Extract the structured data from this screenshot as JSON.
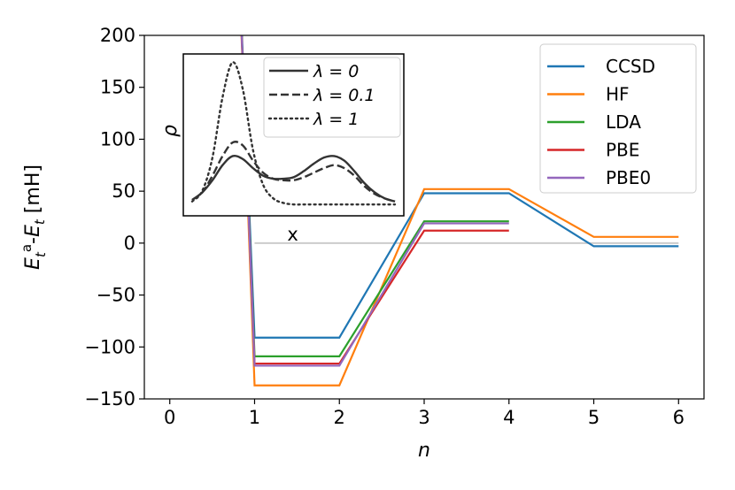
{
  "chart_data": [
    {
      "type": "line",
      "xlabel": "n",
      "ylabel": "E_t^a-E_t [mH]",
      "xlim": [
        -0.3,
        6.3
      ],
      "ylim": [
        -150,
        200
      ],
      "xticks": [
        0,
        1,
        2,
        3,
        4,
        5,
        6
      ],
      "yticks": [
        -150,
        -100,
        -50,
        0,
        50,
        100,
        150,
        200
      ],
      "legend": "top-right",
      "grid": false,
      "reference_line": {
        "y": 0,
        "x_range": [
          1,
          6
        ],
        "color": "#cccccc"
      },
      "annotation": {
        "text": "x",
        "x": 1.45,
        "y": 5
      },
      "series": [
        {
          "name": "CCSD",
          "color": "#1f77b4",
          "x": [
            0.8,
            1,
            2,
            3,
            4,
            5,
            6
          ],
          "values": [
            300,
            -91,
            -91,
            48,
            48,
            -3,
            -3
          ]
        },
        {
          "name": "HF",
          "color": "#ff7f0e",
          "x": [
            0.8,
            1,
            2,
            3,
            4,
            5,
            6
          ],
          "values": [
            300,
            -137,
            -137,
            52,
            52,
            6,
            6
          ]
        },
        {
          "name": "LDA",
          "color": "#2ca02c",
          "x": [
            0.8,
            1,
            2,
            3,
            4
          ],
          "values": [
            300,
            -109,
            -109,
            21,
            21
          ]
        },
        {
          "name": "PBE",
          "color": "#d62728",
          "x": [
            0.8,
            1,
            2,
            3,
            4
          ],
          "values": [
            300,
            -116,
            -116,
            12,
            12
          ]
        },
        {
          "name": "PBE0",
          "color": "#9467bd",
          "x": [
            0.8,
            1,
            2,
            3,
            4
          ],
          "values": [
            300,
            -118,
            -118,
            19,
            19
          ]
        }
      ]
    },
    {
      "type": "line",
      "subplot": "inset",
      "ylabel": "ρ",
      "xlim": [
        0,
        10
      ],
      "ylim": [
        0,
        1
      ],
      "legend": "top-right",
      "series": [
        {
          "name": "λ = 0",
          "style": "solid",
          "color": "#333333",
          "x": [
            0,
            0.5,
            1,
            1.5,
            2,
            2.5,
            3,
            3.5,
            4,
            4.5,
            5,
            5.5,
            6,
            6.5,
            7,
            7.5,
            8,
            8.5,
            9,
            9.5,
            10
          ],
          "values": [
            0.07,
            0.12,
            0.2,
            0.3,
            0.36,
            0.34,
            0.28,
            0.23,
            0.21,
            0.21,
            0.22,
            0.26,
            0.31,
            0.35,
            0.36,
            0.33,
            0.26,
            0.18,
            0.12,
            0.08,
            0.06
          ]
        },
        {
          "name": "λ = 0.1",
          "style": "dashed",
          "color": "#333333",
          "x": [
            0,
            0.5,
            1,
            1.5,
            2,
            2.5,
            3,
            3.5,
            4,
            4.5,
            5,
            5.5,
            6,
            6.5,
            7,
            7.5,
            8,
            8.5,
            9,
            9.5,
            10
          ],
          "values": [
            0.07,
            0.12,
            0.23,
            0.36,
            0.45,
            0.43,
            0.33,
            0.25,
            0.21,
            0.2,
            0.2,
            0.22,
            0.25,
            0.28,
            0.3,
            0.28,
            0.23,
            0.16,
            0.11,
            0.08,
            0.06
          ]
        },
        {
          "name": "λ = 1",
          "style": "dotted",
          "color": "#333333",
          "x": [
            0,
            0.5,
            1,
            1.5,
            2,
            2.5,
            3,
            3.5,
            4,
            4.5,
            5,
            5.5,
            6,
            6.5,
            7,
            7.5,
            8,
            8.5,
            9,
            9.5,
            10
          ],
          "values": [
            0.06,
            0.13,
            0.35,
            0.75,
            0.98,
            0.8,
            0.4,
            0.17,
            0.08,
            0.05,
            0.04,
            0.04,
            0.04,
            0.04,
            0.04,
            0.04,
            0.04,
            0.04,
            0.04,
            0.04,
            0.04
          ]
        }
      ]
    }
  ]
}
